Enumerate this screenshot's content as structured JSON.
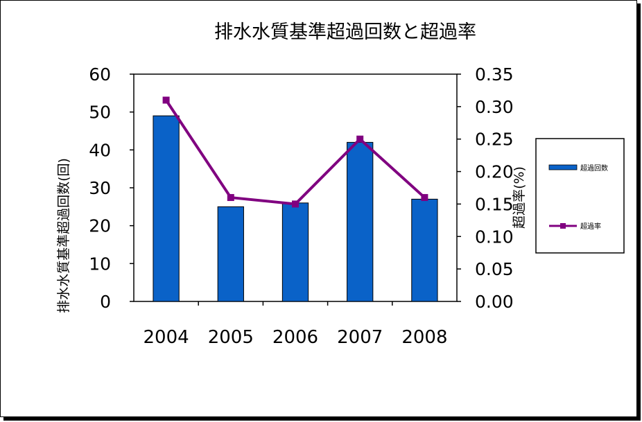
{
  "chart_data": {
    "type": "bar+line",
    "title": "排水水質基準超過回数と超過率",
    "categories": [
      "2004",
      "2005",
      "2006",
      "2007",
      "2008"
    ],
    "series": [
      {
        "name": "超過回数",
        "type": "bar",
        "axis": "left",
        "values": [
          49,
          25,
          26,
          42,
          27
        ],
        "color": "#0a62c8"
      },
      {
        "name": "超過率",
        "type": "line",
        "axis": "right",
        "values": [
          0.31,
          0.16,
          0.15,
          0.25,
          0.16
        ],
        "color": "#800080"
      }
    ],
    "y_left": {
      "label": "排水水質基準超過回数(回)",
      "ylim": [
        0,
        60
      ],
      "ticks": [
        "0",
        "10",
        "20",
        "30",
        "40",
        "50",
        "60"
      ]
    },
    "y_right": {
      "label": "超過率(%)",
      "ylim": [
        0,
        0.35
      ],
      "ticks": [
        "0.00",
        "0.05",
        "0.10",
        "0.15",
        "0.20",
        "0.25",
        "0.30",
        "0.35"
      ]
    },
    "grid": false,
    "legend": "right"
  }
}
